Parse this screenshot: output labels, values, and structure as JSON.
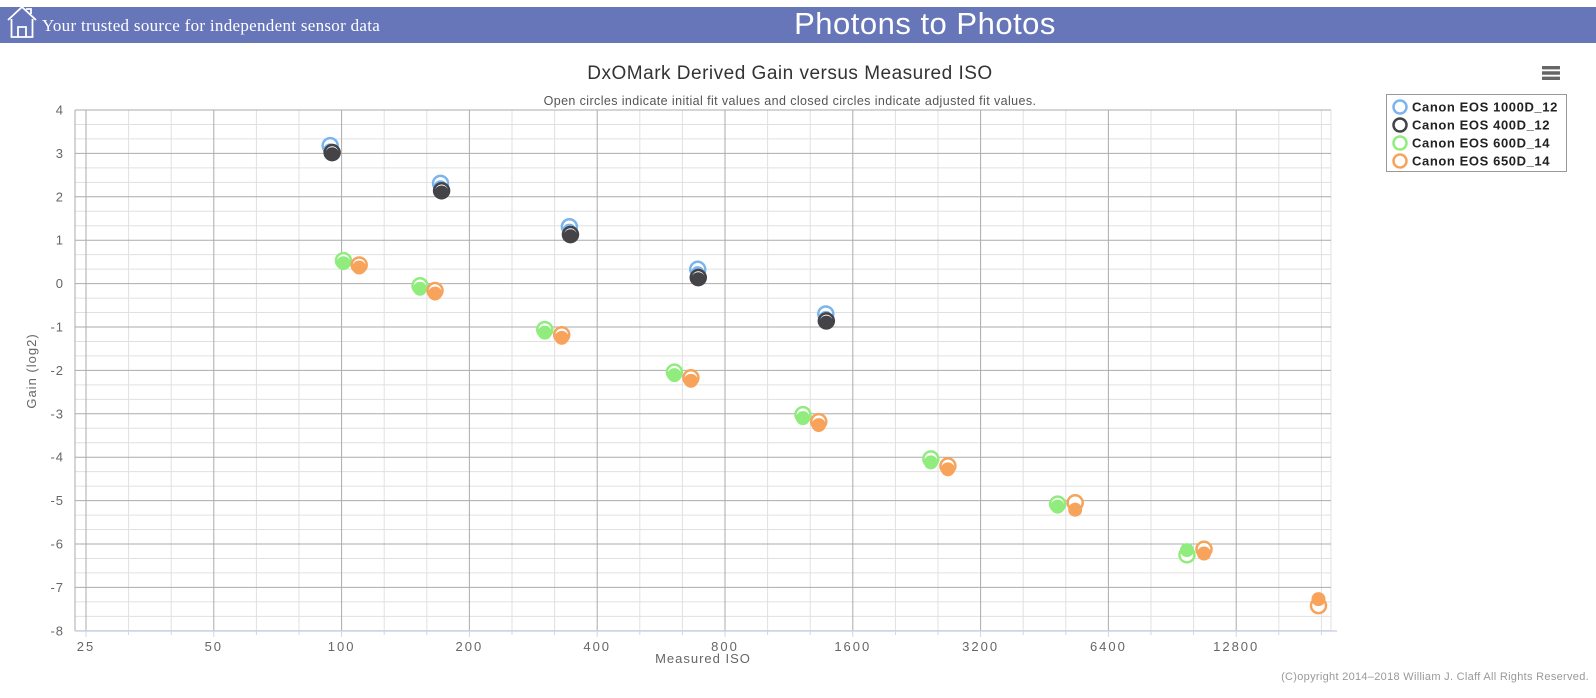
{
  "header": {
    "home_icon": "home-icon",
    "tagline": "Your trusted source for independent sensor data",
    "title": "Photons to Photos",
    "bar_color": "#6775b9"
  },
  "chart": {
    "menu_icon": "hamburger-menu-icon"
  },
  "chart_data": {
    "type": "scatter",
    "title": "DxOMark Derived Gain versus Measured ISO",
    "subtitle": "Open circles indicate initial fit values and closed circles indicate adjusted fit values.",
    "xlabel": "Measured ISO",
    "ylabel": "Gain (log2)",
    "x_scale": "log2",
    "x_ticks": [
      25,
      50,
      100,
      200,
      400,
      800,
      1600,
      3200,
      6400,
      12800
    ],
    "y_ticks": [
      4,
      3,
      2,
      1,
      0,
      -1,
      -2,
      -3,
      -4,
      -5,
      -6,
      -7,
      -8
    ],
    "xlim": [
      23,
      22500
    ],
    "ylim": [
      -8,
      4
    ],
    "grid": true,
    "legend_position": "top-right",
    "point_semantics": {
      "open": "initial fit value",
      "closed": "adjusted fit value"
    },
    "series": [
      {
        "name": "Canon EOS 1000D_12",
        "color": "#7cb5ec",
        "points": [
          {
            "iso": 94,
            "open": 3.18,
            "closed": 3.07
          },
          {
            "iso": 171,
            "open": 2.31,
            "closed": 2.22
          },
          {
            "iso": 344,
            "open": 1.31,
            "closed": 1.22
          },
          {
            "iso": 690,
            "open": 0.33,
            "closed": 0.24
          },
          {
            "iso": 1382,
            "open": -0.7,
            "closed": -0.79
          }
        ]
      },
      {
        "name": "Canon EOS 400D_12",
        "color": "#434348",
        "points": [
          {
            "iso": 95,
            "open": 3.02,
            "closed": 2.98
          },
          {
            "iso": 172,
            "open": 2.14,
            "closed": 2.1
          },
          {
            "iso": 346,
            "open": 1.13,
            "closed": 1.09
          },
          {
            "iso": 692,
            "open": 0.14,
            "closed": 0.1
          },
          {
            "iso": 1386,
            "open": -0.86,
            "closed": -0.9
          }
        ]
      },
      {
        "name": "Canon EOS 600D_14",
        "color": "#90ed7d",
        "points": [
          {
            "iso": 101,
            "open": 0.53,
            "closed": 0.47
          },
          {
            "iso": 153,
            "open": -0.05,
            "closed": -0.12
          },
          {
            "iso": 301,
            "open": -1.06,
            "closed": -1.13
          },
          {
            "iso": 608,
            "open": -2.04,
            "closed": -2.11
          },
          {
            "iso": 1221,
            "open": -3.02,
            "closed": -3.1
          },
          {
            "iso": 2443,
            "open": -4.04,
            "closed": -4.12
          },
          {
            "iso": 4860,
            "open": -5.08,
            "closed": -5.14
          },
          {
            "iso": 9800,
            "open": -6.25,
            "closed": -6.14
          }
        ]
      },
      {
        "name": "Canon EOS 650D_14",
        "color": "#f7a35c",
        "points": [
          {
            "iso": 110,
            "open": 0.43,
            "closed": 0.37
          },
          {
            "iso": 166,
            "open": -0.16,
            "closed": -0.23
          },
          {
            "iso": 330,
            "open": -1.18,
            "closed": -1.25
          },
          {
            "iso": 665,
            "open": -2.17,
            "closed": -2.24
          },
          {
            "iso": 1330,
            "open": -3.18,
            "closed": -3.26
          },
          {
            "iso": 2680,
            "open": -4.2,
            "closed": -4.28
          },
          {
            "iso": 5345,
            "open": -5.05,
            "closed": -5.21
          },
          {
            "iso": 10750,
            "open": -6.12,
            "closed": -6.22
          },
          {
            "iso": 20000,
            "open": -7.42,
            "closed": -7.27
          }
        ]
      }
    ]
  },
  "footer": {
    "copyright": "(C)opyright 2014–2018 William J. Claff All Rights Reserved."
  }
}
